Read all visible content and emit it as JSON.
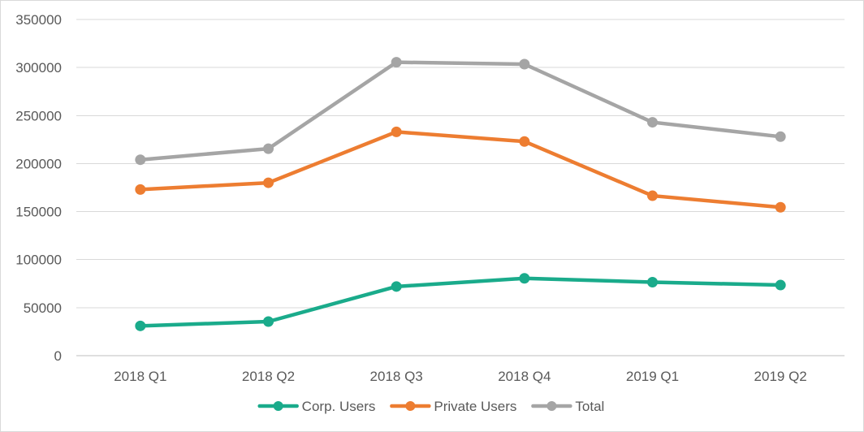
{
  "chart_data": {
    "type": "line",
    "title": "",
    "xlabel": "",
    "ylabel": "",
    "categories": [
      "2018 Q1",
      "2018 Q2",
      "2018 Q3",
      "2018 Q4",
      "2019 Q1",
      "2019 Q2"
    ],
    "ylim": [
      0,
      350000
    ],
    "yticks": [
      0,
      50000,
      100000,
      150000,
      200000,
      250000,
      300000,
      350000
    ],
    "ytick_labels": [
      "0",
      "50000",
      "100000",
      "150000",
      "200000",
      "250000",
      "300000",
      "350000"
    ],
    "grid": true,
    "legend_position": "bottom",
    "series": [
      {
        "name": "Corp. Users",
        "color": "#1aab8b",
        "values": [
          31000,
          35500,
          72000,
          80500,
          76500,
          73500
        ]
      },
      {
        "name": "Private Users",
        "color": "#ed7d31",
        "values": [
          173000,
          180000,
          233000,
          223000,
          166500,
          154500
        ]
      },
      {
        "name": "Total",
        "color": "#a5a5a5",
        "values": [
          204000,
          215500,
          305500,
          303500,
          243000,
          228000
        ]
      }
    ]
  }
}
